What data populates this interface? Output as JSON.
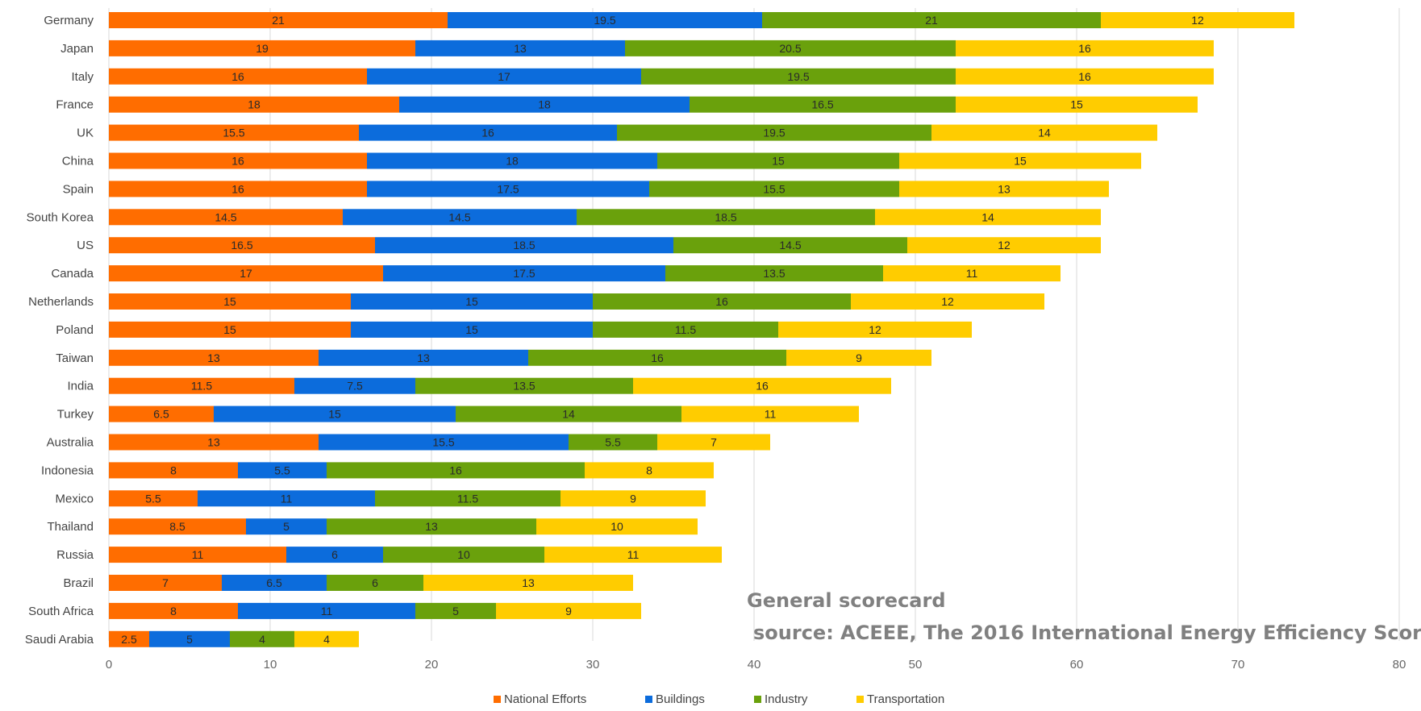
{
  "chart_data": {
    "type": "bar",
    "orientation": "horizontal",
    "stacked": true,
    "categories": [
      "Germany",
      "Japan",
      "Italy",
      "France",
      "UK",
      "China",
      "Spain",
      "South Korea",
      "US",
      "Canada",
      "Netherlands",
      "Poland",
      "Taiwan",
      "India",
      "Turkey",
      "Australia",
      "Indonesia",
      "Mexico",
      "Thailand",
      "Russia",
      "Brazil",
      "South Africa",
      "Saudi Arabia"
    ],
    "series": [
      {
        "name": "National Efforts",
        "color": "#ff6d00",
        "values": [
          21,
          19,
          16,
          18,
          15.5,
          16,
          16,
          14.5,
          16.5,
          17,
          15,
          15,
          13,
          11.5,
          6.5,
          13,
          8,
          5.5,
          8.5,
          11,
          7,
          8,
          2.5
        ]
      },
      {
        "name": "Buildings",
        "color": "#0c6cdc",
        "values": [
          19.5,
          13,
          17,
          18,
          16,
          18,
          17.5,
          14.5,
          18.5,
          17.5,
          15,
          15,
          13,
          7.5,
          15,
          15.5,
          5.5,
          11,
          5,
          6,
          6.5,
          11,
          5
        ]
      },
      {
        "name": "Industry",
        "color": "#6aa10c",
        "values": [
          21,
          20.5,
          19.5,
          16.5,
          19.5,
          15,
          15.5,
          18.5,
          14.5,
          13.5,
          16,
          11.5,
          16,
          13.5,
          14,
          5.5,
          16,
          11.5,
          13,
          10,
          6,
          5,
          4
        ]
      },
      {
        "name": "Transportation",
        "color": "#ffcc00",
        "values": [
          12,
          16,
          16,
          15,
          14,
          15,
          13,
          14,
          12,
          11,
          12,
          12,
          9,
          16,
          11,
          7,
          8,
          9,
          10,
          11,
          13,
          9,
          4
        ]
      }
    ],
    "xlim": [
      0,
      80
    ],
    "xticks": [
      "0",
      "10",
      "20",
      "30",
      "40",
      "50",
      "60",
      "70",
      "80"
    ],
    "grid": true,
    "legend_position": "bottom",
    "annotations": [
      "General scorecard",
      "source: ACEEE, The 2016 International Energy Efficiency Scor"
    ]
  }
}
